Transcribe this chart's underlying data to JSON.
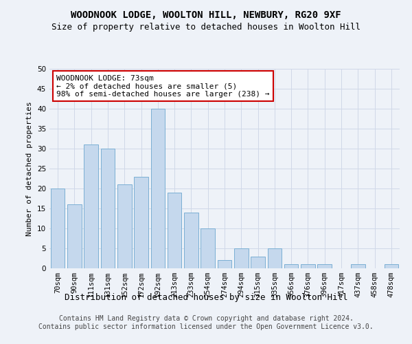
{
  "title": "WOODNOOK LODGE, WOOLTON HILL, NEWBURY, RG20 9XF",
  "subtitle": "Size of property relative to detached houses in Woolton Hill",
  "xlabel": "Distribution of detached houses by size in Woolton Hill",
  "ylabel": "Number of detached properties",
  "categories": [
    "70sqm",
    "90sqm",
    "111sqm",
    "131sqm",
    "152sqm",
    "172sqm",
    "192sqm",
    "213sqm",
    "233sqm",
    "254sqm",
    "274sqm",
    "294sqm",
    "315sqm",
    "335sqm",
    "356sqm",
    "376sqm",
    "396sqm",
    "417sqm",
    "437sqm",
    "458sqm",
    "478sqm"
  ],
  "values": [
    20,
    16,
    31,
    30,
    21,
    23,
    40,
    19,
    14,
    10,
    2,
    5,
    3,
    5,
    1,
    1,
    1,
    0,
    1,
    0,
    1
  ],
  "bar_color": "#c5d8ed",
  "bar_edge_color": "#7bafd4",
  "annotation_text": "WOODNOOK LODGE: 73sqm\n← 2% of detached houses are smaller (5)\n98% of semi-detached houses are larger (238) →",
  "annotation_box_color": "#ffffff",
  "annotation_box_edge_color": "#cc0000",
  "ylim": [
    0,
    50
  ],
  "yticks": [
    0,
    5,
    10,
    15,
    20,
    25,
    30,
    35,
    40,
    45,
    50
  ],
  "grid_color": "#d0d8e8",
  "background_color": "#eef2f8",
  "footer_line1": "Contains HM Land Registry data © Crown copyright and database right 2024.",
  "footer_line2": "Contains public sector information licensed under the Open Government Licence v3.0.",
  "title_fontsize": 10,
  "subtitle_fontsize": 9,
  "xlabel_fontsize": 9,
  "ylabel_fontsize": 8,
  "tick_fontsize": 7.5,
  "annotation_fontsize": 8,
  "footer_fontsize": 7
}
